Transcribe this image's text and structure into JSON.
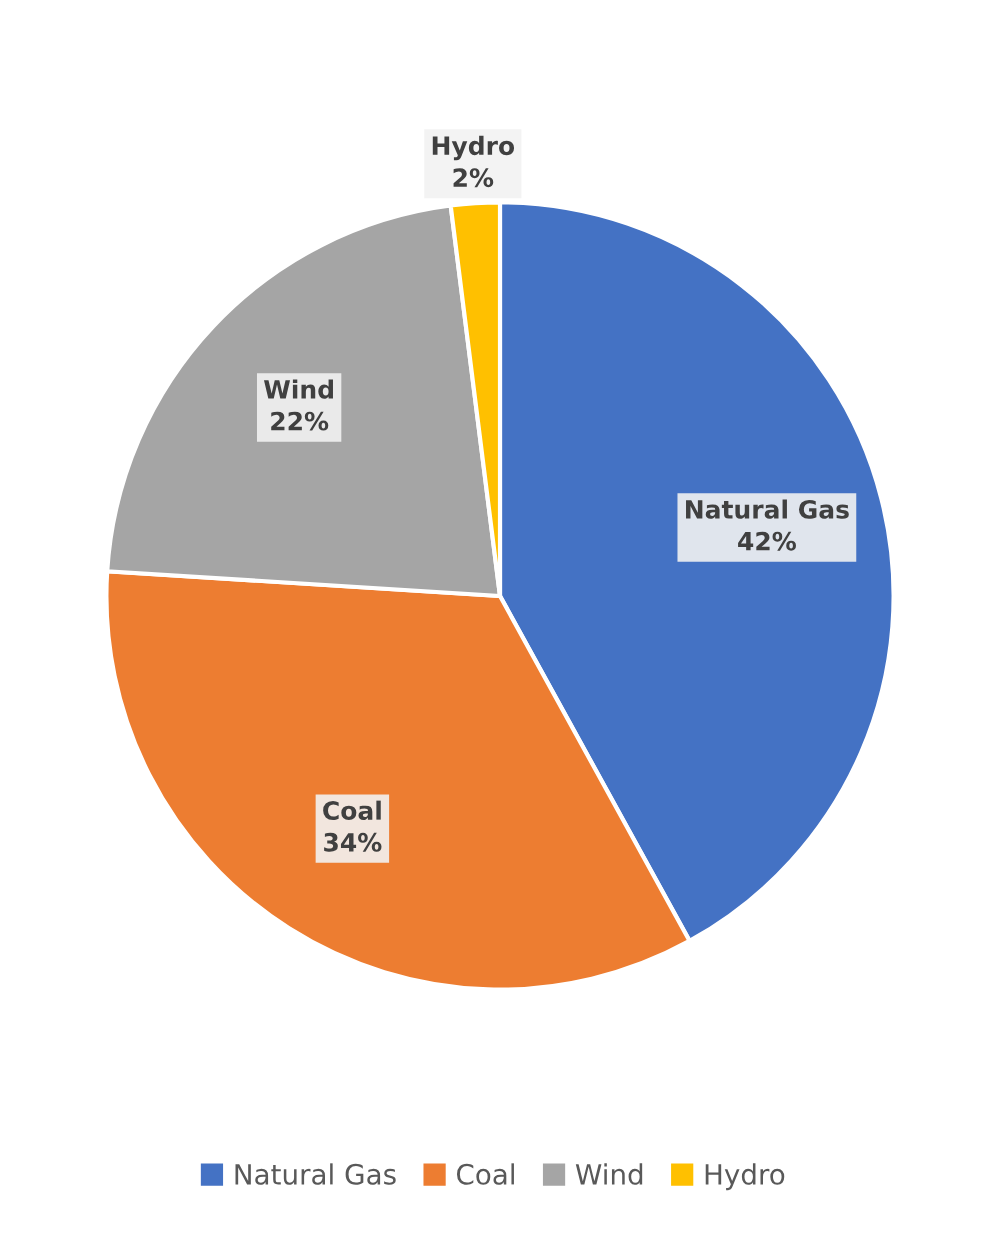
{
  "chart_data": {
    "type": "pie",
    "categories": [
      "Natural Gas",
      "Coal",
      "Wind",
      "Hydro"
    ],
    "values": [
      42,
      34,
      22,
      2
    ],
    "value_labels": [
      "42%",
      "34%",
      "22%",
      "2%"
    ],
    "colors": [
      "#4472c4",
      "#ed7d31",
      "#a5a5a5",
      "#ffc000"
    ],
    "legend": "bottom"
  }
}
